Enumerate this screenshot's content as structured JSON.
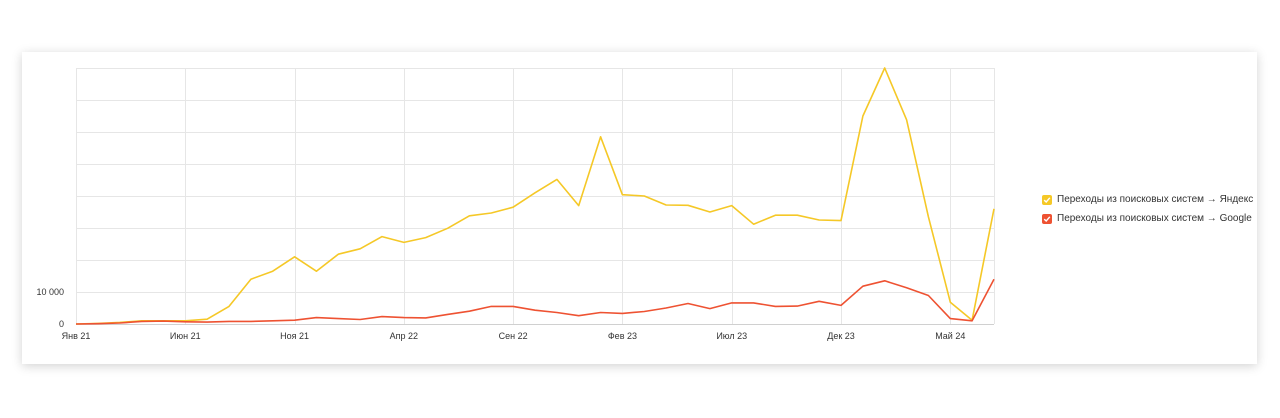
{
  "chart_data": {
    "type": "line",
    "x_tick_labels": [
      "Янв 21",
      "Июн 21",
      "Ноя 21",
      "Апр 22",
      "Сен 22",
      "Фев 23",
      "Июл 23",
      "Дек 23",
      "Май 24"
    ],
    "y_tick_labels": [
      "0",
      "10 000"
    ],
    "ylim": [
      0,
      80000
    ],
    "grid": true,
    "legend_position": "right",
    "x": [
      "2021-01",
      "2021-02",
      "2021-03",
      "2021-04",
      "2021-05",
      "2021-06",
      "2021-07",
      "2021-08",
      "2021-09",
      "2021-10",
      "2021-11",
      "2021-12",
      "2022-01",
      "2022-02",
      "2022-03",
      "2022-04",
      "2022-05",
      "2022-06",
      "2022-07",
      "2022-08",
      "2022-09",
      "2022-10",
      "2022-11",
      "2022-12",
      "2023-01",
      "2023-02",
      "2023-03",
      "2023-04",
      "2023-05",
      "2023-06",
      "2023-07",
      "2023-08",
      "2023-09",
      "2023-10",
      "2023-11",
      "2023-12",
      "2024-01",
      "2024-02",
      "2024-03",
      "2024-04",
      "2024-05",
      "2024-06",
      "2024-07"
    ],
    "series": [
      {
        "name": "Переходы из поисковых систем → Яндекс",
        "color": "#F5C827",
        "values": [
          0,
          200,
          500,
          1000,
          1000,
          1000,
          1500,
          5500,
          14000,
          16500,
          21000,
          16500,
          21800,
          23500,
          27300,
          25500,
          27000,
          29900,
          33800,
          34700,
          36500,
          41000,
          45200,
          37000,
          58500,
          40400,
          40000,
          37200,
          37100,
          35000,
          37000,
          31200,
          34000,
          34000,
          32500,
          32300,
          65000,
          80000,
          63800,
          33500,
          6800,
          1200,
          36000
        ]
      },
      {
        "name": "Переходы из поисковых систем → Google",
        "color": "#EE5232",
        "values": [
          0,
          100,
          300,
          800,
          900,
          700,
          600,
          800,
          800,
          1000,
          1200,
          2000,
          1700,
          1400,
          2300,
          2000,
          1900,
          3000,
          4000,
          5500,
          5500,
          4300,
          3600,
          2600,
          3600,
          3300,
          3900,
          5000,
          6400,
          4800,
          6600,
          6600,
          5500,
          5600,
          7100,
          5800,
          11800,
          13500,
          11300,
          8900,
          1700,
          1000,
          14000
        ]
      }
    ]
  }
}
